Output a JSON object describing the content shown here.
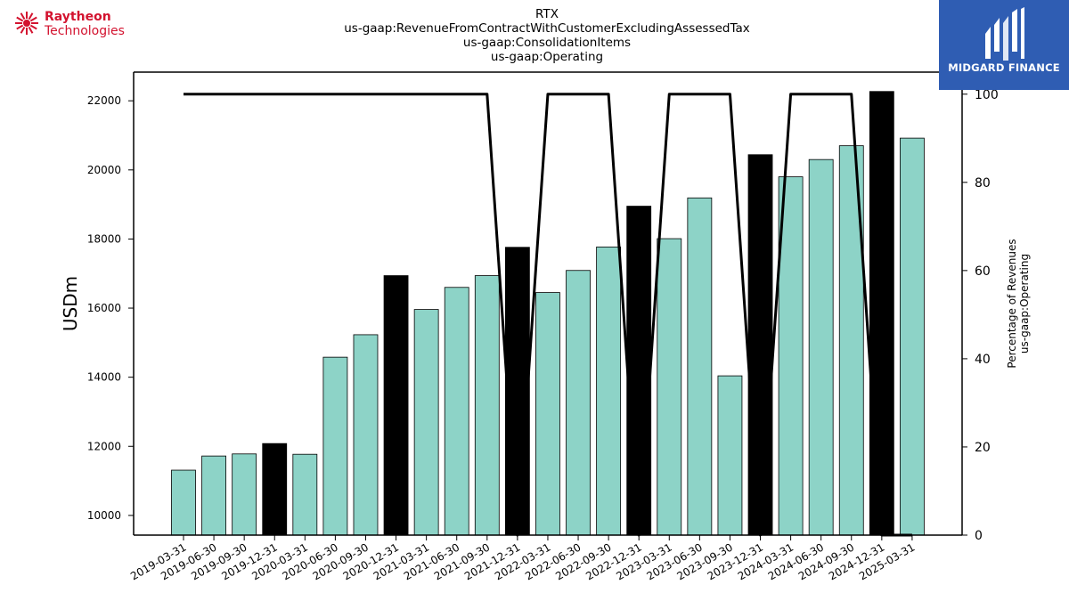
{
  "brand": {
    "company_line1": "Raytheon",
    "company_line2": "Technologies",
    "watermark": "MIDGARD FINANCE",
    "logo_color": "#d3132f",
    "watermark_bg": "#2f5db3"
  },
  "chart_data": {
    "type": "bar",
    "title_lines": [
      "RTX",
      "us-gaap:RevenueFromContractWithCustomerExcludingAssessedTax",
      "us-gaap:ConsolidationItems",
      "us-gaap:Operating"
    ],
    "ylabel": "USDm",
    "y2label_lines": [
      "Percentage of Revenues",
      "us-gaap:Operating"
    ],
    "ylim": [
      9430,
      22830
    ],
    "y2lim": [
      0,
      105
    ],
    "yticks": [
      10000,
      12000,
      14000,
      16000,
      18000,
      20000,
      22000
    ],
    "y2ticks": [
      0,
      20,
      40,
      60,
      80,
      100
    ],
    "categories": [
      "2019-03-31",
      "2019-06-30",
      "2019-09-30",
      "2019-12-31",
      "2020-03-31",
      "2020-06-30",
      "2020-09-30",
      "2020-12-31",
      "2021-03-31",
      "2021-06-30",
      "2021-09-30",
      "2021-12-31",
      "2022-03-31",
      "2022-06-30",
      "2022-09-30",
      "2022-12-31",
      "2023-03-31",
      "2023-06-30",
      "2023-09-30",
      "2023-12-31",
      "2024-03-31",
      "2024-06-30",
      "2024-09-30",
      "2024-12-31",
      "2025-03-31"
    ],
    "values": [
      11310,
      11720,
      11780,
      12080,
      11770,
      14580,
      15230,
      16940,
      15960,
      16600,
      16940,
      17760,
      16450,
      17090,
      17770,
      18950,
      18010,
      19190,
      14040,
      20440,
      19800,
      20300,
      20700,
      22270,
      20920
    ],
    "year_end_flags": [
      false,
      false,
      false,
      true,
      false,
      false,
      false,
      true,
      false,
      false,
      false,
      true,
      false,
      false,
      false,
      true,
      false,
      false,
      false,
      true,
      false,
      false,
      false,
      true,
      false
    ],
    "line": {
      "name": "Percentage of Revenues",
      "values": [
        100,
        100,
        100,
        100,
        100,
        100,
        100,
        100,
        100,
        100,
        100,
        0,
        100,
        100,
        100,
        0,
        100,
        100,
        100,
        0,
        100,
        100,
        100,
        0,
        0
      ]
    },
    "colors": {
      "quarter_bar": "#8dd3c7",
      "year_end_bar": "#000000",
      "line": "#000000"
    },
    "grid": false
  }
}
